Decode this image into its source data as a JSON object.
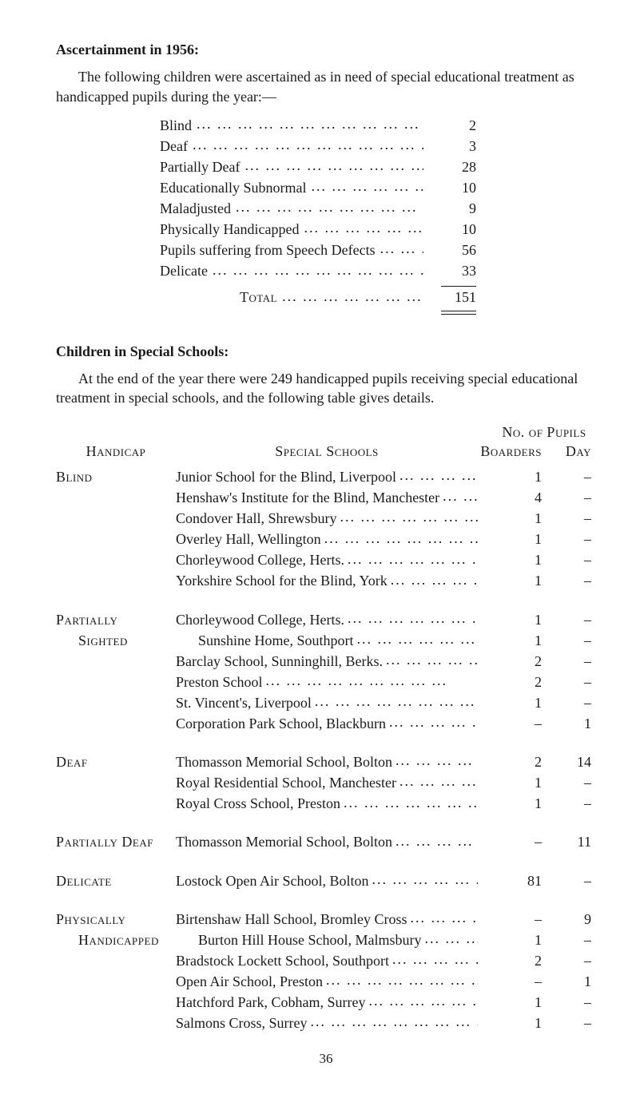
{
  "title1": "Ascertainment in 1956:",
  "para1": "The following children were ascertained as in need of special educational treatment as handicapped pupils during the year:—",
  "ascertain": [
    {
      "label": "Blind",
      "value": "2"
    },
    {
      "label": "Deaf",
      "value": "3"
    },
    {
      "label": "Partially Deaf",
      "value": "28"
    },
    {
      "label": "Educationally Subnormal",
      "value": "10"
    },
    {
      "label": "Maladjusted",
      "value": "9"
    },
    {
      "label": "Physically Handicapped",
      "value": "10"
    },
    {
      "label": "Pupils suffering from Speech Defects",
      "value": "56"
    },
    {
      "label": "Delicate",
      "value": "33"
    }
  ],
  "totalLabel": "Total",
  "totalValue": "151",
  "title2": "Children in Special Schools:",
  "para2": "At the end of the year there were 249 handicapped pupils receiving special educational treatment in special schools, and the following table gives details.",
  "hdrHandicap": "Handicap",
  "hdrSpecial": "Special Schools",
  "hdrNoPupils": "No. of Pupils",
  "hdrBoarders": "Boarders",
  "hdrDay": "Day",
  "groups": [
    {
      "handicap": "Blind",
      "rows": [
        {
          "school": "Junior School for the Blind, Liverpool",
          "b": "1",
          "d": "–"
        },
        {
          "school": "Henshaw's Institute for the Blind, Manchester",
          "b": "4",
          "d": "–"
        },
        {
          "school": "Condover Hall, Shrewsbury",
          "b": "1",
          "d": "–"
        },
        {
          "school": "Overley Hall, Wellington",
          "b": "1",
          "d": "–"
        },
        {
          "school": "Chorleywood College, Herts.",
          "b": "1",
          "d": "–"
        },
        {
          "school": "Yorkshire School for the Blind, York",
          "b": "1",
          "d": "–"
        }
      ]
    },
    {
      "handicap": "Partially Sighted",
      "handicap2": "Sighted",
      "rows": [
        {
          "school": "Chorleywood College, Herts.",
          "b": "1",
          "d": "–"
        },
        {
          "school": "Sunshine Home, Southport",
          "b": "1",
          "d": "–"
        },
        {
          "school": "Barclay School, Sunninghill, Berks.",
          "b": "2",
          "d": "–"
        },
        {
          "school": "Preston School",
          "b": "2",
          "d": "–"
        },
        {
          "school": "St. Vincent's, Liverpool",
          "b": "1",
          "d": "–"
        },
        {
          "school": "Corporation Park School, Blackburn",
          "b": "–",
          "d": "1"
        }
      ]
    },
    {
      "handicap": "Deaf",
      "rows": [
        {
          "school": "Thomasson Memorial School, Bolton",
          "b": "2",
          "d": "14"
        },
        {
          "school": "Royal Residential School, Manchester",
          "b": "1",
          "d": "–"
        },
        {
          "school": "Royal Cross School, Preston",
          "b": "1",
          "d": "–"
        }
      ]
    },
    {
      "handicap": "Partially Deaf",
      "rows": [
        {
          "school": "Thomasson Memorial School, Bolton",
          "b": "–",
          "d": "11"
        }
      ]
    },
    {
      "handicap": "Delicate",
      "rows": [
        {
          "school": "Lostock Open Air School, Bolton",
          "b": "81",
          "d": "–"
        }
      ]
    },
    {
      "handicap": "Physically Handicapped",
      "handicap2": "Handicapped",
      "rows": [
        {
          "school": "Birtenshaw Hall School, Bromley Cross",
          "b": "–",
          "d": "9"
        },
        {
          "school": "Burton Hill House School, Malmsbury",
          "b": "1",
          "d": "–"
        },
        {
          "school": "Bradstock Lockett School, Southport",
          "b": "2",
          "d": "–"
        },
        {
          "school": "Open Air School, Preston",
          "b": "–",
          "d": "1"
        },
        {
          "school": "Hatchford Park, Cobham, Surrey",
          "b": "1",
          "d": "–"
        },
        {
          "school": "Salmons Cross, Surrey",
          "b": "1",
          "d": "–"
        }
      ]
    }
  ],
  "pageNumber": "36"
}
